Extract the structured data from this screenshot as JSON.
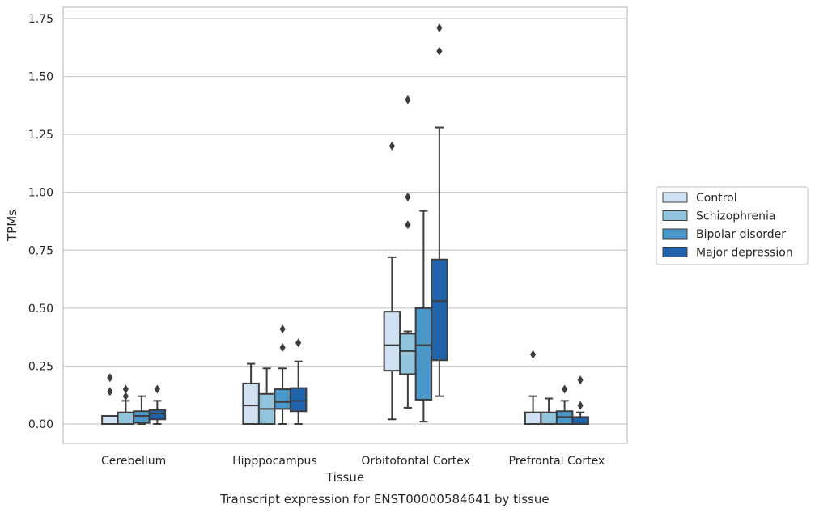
{
  "chart_data": {
    "type": "box",
    "title": "",
    "caption": "Transcript expression for ENST00000584641 by tissue",
    "xlabel": "Tissue",
    "ylabel": "TPMs",
    "ylim": [
      -0.08,
      1.8
    ],
    "yticks": [
      0.0,
      0.25,
      0.5,
      0.75,
      1.0,
      1.25,
      1.5,
      1.75
    ],
    "ytick_labels": [
      "0.00",
      "0.25",
      "0.50",
      "0.75",
      "1.00",
      "1.25",
      "1.50",
      "1.75"
    ],
    "grid": "horizontal",
    "legend_position": "right",
    "categories": [
      "Cerebellum",
      "Hipppocampus",
      "Orbitofontal Cortex",
      "Prefrontal Cortex"
    ],
    "series": [
      {
        "name": "Control",
        "color": "#cfe1f2",
        "boxes": [
          {
            "whislo": 0.0,
            "q1": 0.0,
            "med": 0.0,
            "q3": 0.035,
            "whishi": 0.035,
            "fliers": [
              0.2,
              0.14
            ]
          },
          {
            "whislo": 0.0,
            "q1": 0.0,
            "med": 0.08,
            "q3": 0.175,
            "whishi": 0.26,
            "fliers": []
          },
          {
            "whislo": 0.02,
            "q1": 0.23,
            "med": 0.34,
            "q3": 0.485,
            "whishi": 0.72,
            "fliers": [
              1.2
            ]
          },
          {
            "whislo": 0.0,
            "q1": 0.0,
            "med": 0.0,
            "q3": 0.05,
            "whishi": 0.12,
            "fliers": [
              0.3
            ]
          }
        ]
      },
      {
        "name": "Schizophrenia",
        "color": "#93c4de",
        "boxes": [
          {
            "whislo": 0.0,
            "q1": 0.0,
            "med": 0.0,
            "q3": 0.05,
            "whishi": 0.1,
            "fliers": [
              0.15,
              0.12
            ]
          },
          {
            "whislo": 0.0,
            "q1": 0.0,
            "med": 0.065,
            "q3": 0.13,
            "whishi": 0.24,
            "fliers": []
          },
          {
            "whislo": 0.07,
            "q1": 0.215,
            "med": 0.315,
            "q3": 0.39,
            "whishi": 0.4,
            "fliers": [
              1.4,
              0.98,
              0.86
            ]
          },
          {
            "whislo": 0.0,
            "q1": 0.0,
            "med": 0.0,
            "q3": 0.05,
            "whishi": 0.11,
            "fliers": []
          }
        ]
      },
      {
        "name": "Bipolar disorder",
        "color": "#4a98c9",
        "boxes": [
          {
            "whislo": 0.0,
            "q1": 0.005,
            "med": 0.035,
            "q3": 0.055,
            "whishi": 0.12,
            "fliers": []
          },
          {
            "whislo": 0.0,
            "q1": 0.065,
            "med": 0.095,
            "q3": 0.15,
            "whishi": 0.24,
            "fliers": [
              0.41,
              0.33
            ]
          },
          {
            "whislo": 0.01,
            "q1": 0.105,
            "med": 0.34,
            "q3": 0.5,
            "whishi": 0.92,
            "fliers": []
          },
          {
            "whislo": 0.0,
            "q1": 0.0,
            "med": 0.03,
            "q3": 0.055,
            "whishi": 0.1,
            "fliers": [
              0.15
            ]
          }
        ]
      },
      {
        "name": "Major depression",
        "color": "#2164ab",
        "boxes": [
          {
            "whislo": 0.0,
            "q1": 0.02,
            "med": 0.045,
            "q3": 0.06,
            "whishi": 0.1,
            "fliers": [
              0.15
            ]
          },
          {
            "whislo": 0.0,
            "q1": 0.055,
            "med": 0.1,
            "q3": 0.155,
            "whishi": 0.27,
            "fliers": [
              0.35
            ]
          },
          {
            "whislo": 0.12,
            "q1": 0.275,
            "med": 0.53,
            "q3": 0.71,
            "whishi": 1.28,
            "fliers": [
              1.71,
              1.61
            ]
          },
          {
            "whislo": 0.0,
            "q1": 0.0,
            "med": 0.0,
            "q3": 0.03,
            "whishi": 0.05,
            "fliers": [
              0.19,
              0.08
            ]
          }
        ]
      }
    ]
  }
}
